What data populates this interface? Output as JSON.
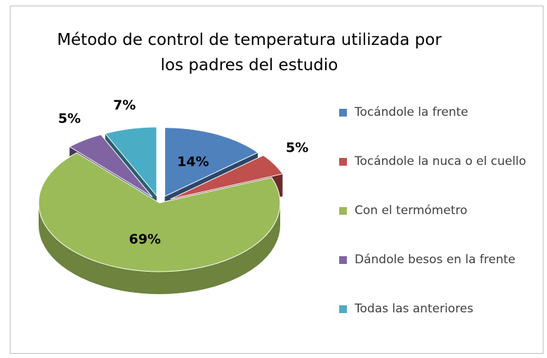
{
  "chart_data": {
    "type": "pie3d",
    "title": "Método de control de temperatura utilizada por los padres del estudio",
    "categories": [
      "Tocándole la frente",
      "Tocándole la nuca o el cuello",
      "Con el termómetro",
      "Dándole besos en la frente",
      "Todas las anteriores"
    ],
    "values": [
      14,
      5,
      69,
      5,
      7
    ],
    "value_labels": [
      "14%",
      "5%",
      "69%",
      "5%",
      "7%"
    ],
    "colors": [
      "#4f81bd",
      "#c0504d",
      "#9bbb59",
      "#8064a2",
      "#4bacc6"
    ],
    "legend": "right"
  }
}
